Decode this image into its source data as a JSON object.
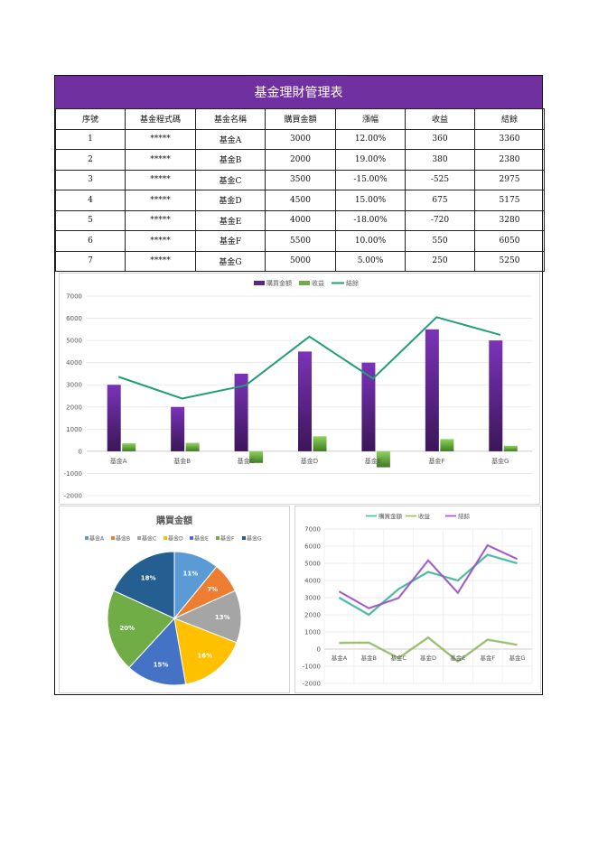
{
  "table": {
    "title": "基金理財管理表",
    "headers": [
      "序號",
      "基金程式碼",
      "基金名稱",
      "購買金額",
      "漲幅",
      "收益",
      "結餘"
    ],
    "rows": [
      [
        "1",
        "*****",
        "基金A",
        "3000",
        "12.00%",
        "360",
        "3360"
      ],
      [
        "2",
        "*****",
        "基金B",
        "2000",
        "19.00%",
        "380",
        "2380"
      ],
      [
        "3",
        "*****",
        "基金C",
        "3500",
        "-15.00%",
        "-525",
        "2975"
      ],
      [
        "4",
        "*****",
        "基金D",
        "4500",
        "15.00%",
        "675",
        "5175"
      ],
      [
        "5",
        "*****",
        "基金E",
        "4000",
        "-18.00%",
        "-720",
        "3280"
      ],
      [
        "6",
        "*****",
        "基金F",
        "5500",
        "10.00%",
        "550",
        "6050"
      ],
      [
        "7",
        "*****",
        "基金G",
        "5000",
        "5.00%",
        "250",
        "5250"
      ]
    ]
  },
  "colors": {
    "header_purple": "#7030a0",
    "bar_purple": "#7030a0",
    "bar_green": "#70ad47",
    "line_teal": "#1f9e78",
    "line2_purchase": "#2ec4a5",
    "line2_profit": "#92c653",
    "line2_balance": "#a84ed6",
    "pie": [
      "#5b9bd5",
      "#ed7d31",
      "#a5a5a5",
      "#ffc000",
      "#4472c4",
      "#70ad47",
      "#255e91"
    ]
  },
  "chart_data": [
    {
      "type": "bar",
      "categories": [
        "基金A",
        "基金B",
        "基金C",
        "基金D",
        "基金E",
        "基金F",
        "基金G"
      ],
      "series": [
        {
          "name": "購買金額",
          "kind": "bar",
          "values": [
            3000,
            2000,
            3500,
            4500,
            4000,
            5500,
            5000
          ]
        },
        {
          "name": "收益",
          "kind": "bar",
          "values": [
            360,
            380,
            -525,
            675,
            -720,
            550,
            250
          ]
        },
        {
          "name": "結餘",
          "kind": "line",
          "values": [
            3360,
            2380,
            2975,
            5175,
            3280,
            6050,
            5250
          ]
        }
      ],
      "ylim": [
        -2000,
        7000
      ],
      "yticks": [
        "7000",
        "6000",
        "5000",
        "4000",
        "3000",
        "2000",
        "1000",
        "0",
        "-1000",
        "-2000"
      ],
      "grid": true,
      "legend": "top"
    },
    {
      "type": "pie",
      "title": "購買金額",
      "categories": [
        "基金A",
        "基金B",
        "基金C",
        "基金D",
        "基金E",
        "基金F",
        "基金G"
      ],
      "values": [
        3000,
        2000,
        3500,
        4500,
        4000,
        5500,
        5000
      ],
      "labels": [
        "11%",
        "7%",
        "13%",
        "16%",
        "15%",
        "20%",
        "18%"
      ],
      "legend": "top"
    },
    {
      "type": "line",
      "categories": [
        "基金A",
        "基金B",
        "基金C",
        "基金D",
        "基金E",
        "基金F",
        "基金G"
      ],
      "series": [
        {
          "name": "購買金額",
          "values": [
            3000,
            2000,
            3500,
            4500,
            4000,
            5500,
            5000
          ]
        },
        {
          "name": "收益",
          "values": [
            360,
            380,
            -525,
            675,
            -720,
            550,
            250
          ]
        },
        {
          "name": "結餘",
          "values": [
            3360,
            2380,
            2975,
            5175,
            3280,
            6050,
            5250
          ]
        }
      ],
      "ylim": [
        -2000,
        7000
      ],
      "yticks": [
        "7000",
        "6000",
        "5000",
        "4000",
        "3000",
        "2000",
        "1000",
        "0",
        "-1000",
        "-2000"
      ],
      "grid": true,
      "legend": "top"
    }
  ]
}
